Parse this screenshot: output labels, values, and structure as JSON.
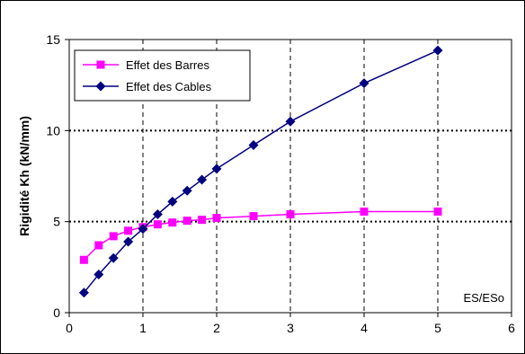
{
  "chart_data": {
    "type": "line",
    "title": "",
    "xlabel": "",
    "ylabel": "Rigidité  Kh (kN/mm)",
    "annotation": "ES/ESo",
    "xlim": [
      0,
      6
    ],
    "ylim": [
      0,
      15
    ],
    "x_ticks": [
      "0",
      "1",
      "2",
      "3",
      "4",
      "5",
      "6"
    ],
    "y_ticks": [
      "0",
      "5",
      "10",
      "15"
    ],
    "grid": "major gridlines: vertical dashed at x=1..5, horizontal dotted at y=5 and y=10",
    "legend_position": "top-left",
    "series": [
      {
        "name": "Effet des Barres",
        "color": "#ff00ff",
        "marker": "square",
        "x": [
          0.2,
          0.4,
          0.6,
          0.8,
          1.0,
          1.2,
          1.4,
          1.6,
          1.8,
          2.0,
          2.5,
          3.0,
          4.0,
          5.0
        ],
        "y": [
          2.9,
          3.7,
          4.2,
          4.5,
          4.7,
          4.85,
          4.95,
          5.05,
          5.1,
          5.2,
          5.3,
          5.4,
          5.55,
          5.55
        ]
      },
      {
        "name": "Effet des Cables",
        "color": "#000080",
        "marker": "diamond",
        "x": [
          0.2,
          0.4,
          0.6,
          0.8,
          1.0,
          1.2,
          1.4,
          1.6,
          1.8,
          2.0,
          2.5,
          3.0,
          4.0,
          5.0
        ],
        "y": [
          1.1,
          2.1,
          3.0,
          3.9,
          4.6,
          5.4,
          6.1,
          6.7,
          7.3,
          7.9,
          9.2,
          10.5,
          12.6,
          14.4
        ]
      }
    ]
  }
}
